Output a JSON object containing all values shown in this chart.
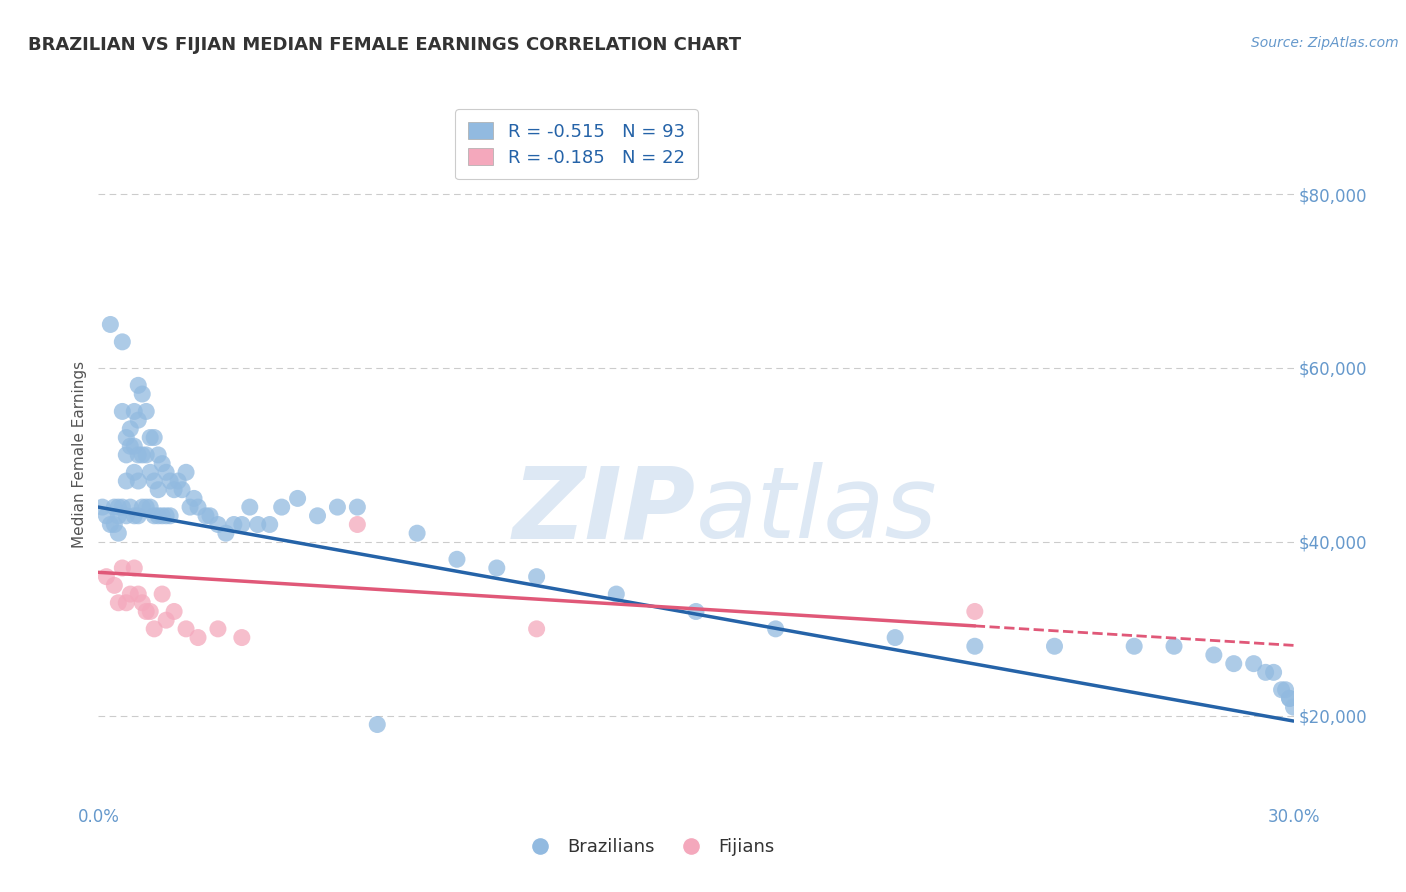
{
  "title": "BRAZILIAN VS FIJIAN MEDIAN FEMALE EARNINGS CORRELATION CHART",
  "source": "Source: ZipAtlas.com",
  "xlabel": "",
  "ylabel": "Median Female Earnings",
  "xlim": [
    0.0,
    0.3
  ],
  "ylim": [
    10000,
    90000
  ],
  "xticks": [
    0.0,
    0.05,
    0.1,
    0.15,
    0.2,
    0.25,
    0.3
  ],
  "xtick_labels": [
    "0.0%",
    "",
    "",
    "",
    "",
    "",
    "30.0%"
  ],
  "yticks": [
    20000,
    40000,
    60000,
    80000
  ],
  "ytick_labels": [
    "$20,000",
    "$40,000",
    "$60,000",
    "$80,000"
  ],
  "brazil_R": -0.515,
  "brazil_N": 93,
  "fiji_R": -0.185,
  "fiji_N": 22,
  "brazil_color": "#92BAE0",
  "fiji_color": "#F4A8BC",
  "brazil_line_color": "#2563A8",
  "fiji_line_color": "#E05878",
  "background_color": "#ffffff",
  "grid_color": "#cccccc",
  "title_color": "#333333",
  "axis_label_color": "#555555",
  "tick_color": "#6699CC",
  "watermark_color": "#dde8f4",
  "brazil_intercept": 44000,
  "brazil_slope": -82000,
  "fiji_intercept": 36500,
  "fiji_slope": -28000,
  "brazil_x": [
    0.001,
    0.002,
    0.003,
    0.003,
    0.004,
    0.004,
    0.005,
    0.005,
    0.005,
    0.006,
    0.006,
    0.006,
    0.007,
    0.007,
    0.007,
    0.007,
    0.008,
    0.008,
    0.008,
    0.009,
    0.009,
    0.009,
    0.009,
    0.01,
    0.01,
    0.01,
    0.01,
    0.01,
    0.011,
    0.011,
    0.011,
    0.012,
    0.012,
    0.012,
    0.013,
    0.013,
    0.013,
    0.014,
    0.014,
    0.014,
    0.015,
    0.015,
    0.015,
    0.016,
    0.016,
    0.017,
    0.017,
    0.018,
    0.018,
    0.019,
    0.02,
    0.021,
    0.022,
    0.023,
    0.024,
    0.025,
    0.027,
    0.028,
    0.03,
    0.032,
    0.034,
    0.036,
    0.038,
    0.04,
    0.043,
    0.046,
    0.05,
    0.055,
    0.06,
    0.065,
    0.07,
    0.08,
    0.09,
    0.1,
    0.11,
    0.13,
    0.15,
    0.17,
    0.2,
    0.22,
    0.24,
    0.26,
    0.27,
    0.28,
    0.285,
    0.29,
    0.293,
    0.295,
    0.297,
    0.298,
    0.299,
    0.299,
    0.3
  ],
  "brazil_y": [
    44000,
    43000,
    65000,
    42000,
    44000,
    42000,
    44000,
    43000,
    41000,
    63000,
    55000,
    44000,
    52000,
    50000,
    47000,
    43000,
    53000,
    51000,
    44000,
    55000,
    51000,
    48000,
    43000,
    58000,
    54000,
    50000,
    47000,
    43000,
    57000,
    50000,
    44000,
    55000,
    50000,
    44000,
    52000,
    48000,
    44000,
    52000,
    47000,
    43000,
    50000,
    46000,
    43000,
    49000,
    43000,
    48000,
    43000,
    47000,
    43000,
    46000,
    47000,
    46000,
    48000,
    44000,
    45000,
    44000,
    43000,
    43000,
    42000,
    41000,
    42000,
    42000,
    44000,
    42000,
    42000,
    44000,
    45000,
    43000,
    44000,
    44000,
    19000,
    41000,
    38000,
    37000,
    36000,
    34000,
    32000,
    30000,
    29000,
    28000,
    28000,
    28000,
    28000,
    27000,
    26000,
    26000,
    25000,
    25000,
    23000,
    23000,
    22000,
    22000,
    21000
  ],
  "fiji_x": [
    0.002,
    0.004,
    0.005,
    0.006,
    0.007,
    0.008,
    0.009,
    0.01,
    0.011,
    0.012,
    0.013,
    0.014,
    0.016,
    0.017,
    0.019,
    0.022,
    0.025,
    0.03,
    0.036,
    0.065,
    0.11,
    0.22
  ],
  "fiji_y": [
    36000,
    35000,
    33000,
    37000,
    33000,
    34000,
    37000,
    34000,
    33000,
    32000,
    32000,
    30000,
    34000,
    31000,
    32000,
    30000,
    29000,
    30000,
    29000,
    42000,
    30000,
    32000
  ]
}
